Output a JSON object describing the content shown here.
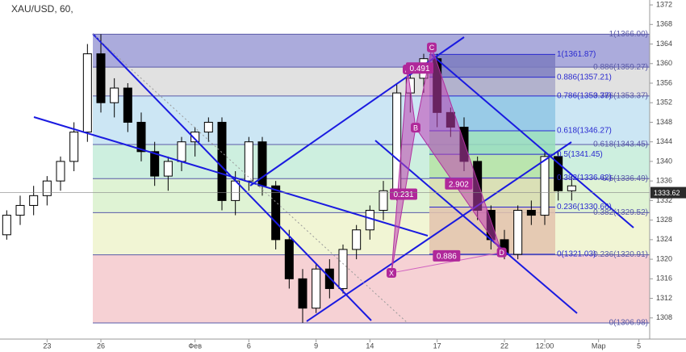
{
  "chart_data": {
    "type": "candlestick",
    "title": "XAU/USD, 60,",
    "categories": [
      null,
      null,
      null,
      "23",
      null,
      null,
      null,
      "26",
      null,
      null,
      null,
      null,
      null,
      null,
      "Фев",
      null,
      null,
      null,
      "6",
      null,
      null,
      null,
      null,
      "9",
      null,
      null,
      null,
      "14",
      null,
      null,
      null,
      null,
      "17",
      null,
      null,
      null,
      null,
      "22",
      null,
      null,
      "12:00",
      null,
      null,
      null,
      "Мар",
      null,
      null,
      "5"
    ],
    "open": [
      1325,
      1329,
      1331,
      1333,
      1336,
      1340,
      1346,
      1362,
      1352,
      1355,
      1348,
      1342,
      1337,
      1340,
      1344,
      1346,
      1348,
      1332,
      1336,
      1344,
      1335,
      1324,
      1316,
      1310,
      1318,
      1314,
      1322,
      1326,
      1330,
      1334,
      1354,
      1357,
      1361,
      1350,
      1347,
      1340,
      1330,
      1324,
      1321,
      1330,
      1329,
      1341,
      1334,
      null,
      null,
      null,
      null,
      null
    ],
    "high": [
      1330,
      1333,
      1335,
      1337,
      1341,
      1348,
      1364,
      1366,
      1357,
      1356,
      1350,
      1344,
      1341,
      1345,
      1347,
      1349,
      1349,
      1338,
      1345,
      1345,
      1336,
      1326,
      1318,
      1319,
      1320,
      1323,
      1327,
      1331,
      1336,
      1356,
      1359,
      1362,
      1362,
      1351,
      1349,
      1341,
      1331,
      1326,
      1331,
      1332,
      1342,
      1342,
      1337,
      null,
      null,
      null,
      null,
      null
    ],
    "low": [
      1324,
      1327,
      1329,
      1331,
      1334,
      1338,
      1344,
      1350,
      1349,
      1346,
      1340,
      1335,
      1334,
      1338,
      1341,
      1344,
      1330,
      1329,
      1334,
      1333,
      1322,
      1314,
      1307,
      1309,
      1312,
      1313,
      1320,
      1324,
      1328,
      1332,
      1350,
      1354,
      1347,
      1345,
      1338,
      1328,
      1322,
      1320,
      1320,
      1327,
      1327,
      1332,
      1332,
      null,
      null,
      null,
      null,
      null
    ],
    "close": [
      1329,
      1331,
      1333,
      1336,
      1340,
      1346,
      1362,
      1352,
      1355,
      1348,
      1342,
      1337,
      1340,
      1344,
      1346,
      1348,
      1332,
      1336,
      1344,
      1335,
      1324,
      1316,
      1310,
      1318,
      1314,
      1322,
      1326,
      1330,
      1334,
      1354,
      1357,
      1361,
      1350,
      1347,
      1340,
      1330,
      1324,
      1321,
      1330,
      1329,
      1341,
      1334,
      1335,
      null,
      null,
      null,
      null,
      null
    ],
    "ylim": [
      1304.5,
      1373
    ],
    "yticks": [
      1308,
      1312,
      1316,
      1320,
      1324,
      1328,
      1332,
      1336,
      1340,
      1344,
      1348,
      1352,
      1356,
      1360,
      1364,
      1368,
      1372
    ],
    "last_price": 1333.62,
    "fib_left": {
      "levels": [
        {
          "value": 1366,
          "label": "1(1366.00)"
        },
        {
          "value": 1359.27,
          "label": "0.886(1359.27)"
        },
        {
          "value": 1353.37,
          "label": "0.786(1353.37)"
        },
        {
          "value": 1343.45,
          "label": "0.618(1343.45)"
        },
        {
          "value": 1336.49,
          "label": "0.5(1336.49)"
        },
        {
          "value": 1329.52,
          "label": "0.382(1329.52)"
        },
        {
          "value": 1320.91,
          "label": "0.236(1320.91)"
        },
        {
          "value": 1306.98,
          "label": "0(1306.98)"
        }
      ],
      "colors": [
        "#9c9cd6",
        "#dcdcdc",
        "#c3e2f2",
        "#c4ecd9",
        "#d9f1cc",
        "#eef3cc",
        "#f5c9cd"
      ]
    },
    "fib_right": {
      "levels": [
        {
          "value": 1361.87,
          "label": "1(1361.87)"
        },
        {
          "value": 1357.21,
          "label": "0.886(1357.21)"
        },
        {
          "value": 1353.37,
          "label": "0.786(1353.37)"
        },
        {
          "value": 1346.27,
          "label": "0.618(1346.27)"
        },
        {
          "value": 1341.45,
          "label": "0.5(1341.45)"
        },
        {
          "value": 1336.62,
          "label": "0.382(1336.62)"
        },
        {
          "value": 1330.66,
          "label": "0.236(1330.66)"
        },
        {
          "value": 1321.03,
          "label": "0(1321.03)"
        }
      ],
      "colors": [
        "#7b7bbf",
        "#a9a9c9",
        "#8fc6e4",
        "#96dcbb",
        "#b6e3a6",
        "#d9dcb0",
        "#e3c2ad"
      ]
    },
    "pattern_points": [
      {
        "label": "X",
        "x": 28.6,
        "y": 1317.2
      },
      {
        "label": "A",
        "x": 29.8,
        "y": 1358.8
      },
      {
        "label": "B",
        "x": 30.4,
        "y": 1346.9
      },
      {
        "label": "C",
        "x": 31.6,
        "y": 1363.3
      },
      {
        "label": "D",
        "x": 36.8,
        "y": 1321.4
      }
    ],
    "pattern_ratios": [
      {
        "label": "0.231",
        "x": 29.5,
        "y": 1333.3
      },
      {
        "label": "0.491",
        "x": 30.7,
        "y": 1359.1
      },
      {
        "label": "2.902",
        "x": 33.6,
        "y": 1335.4
      },
      {
        "label": "0.886",
        "x": 32.7,
        "y": 1320.7
      }
    ]
  }
}
